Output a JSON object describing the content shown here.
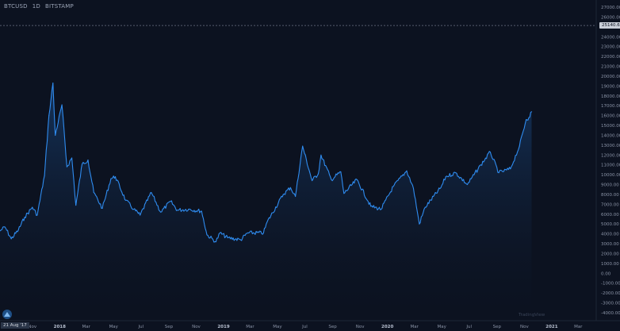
{
  "header": {
    "symbol": "BTCUSD",
    "interval": "1D",
    "exchange": "BITSTAMP"
  },
  "crosshair": {
    "price_label": "25140.67",
    "date_label": "21 Aug '17"
  },
  "watermark": "TradingView",
  "colors": {
    "background": "#0c1220",
    "line": "#2f8cf0",
    "price_tag": "#c9ced8"
  },
  "icons": {
    "logo": "tradingview-logo-icon"
  },
  "chart_data": {
    "type": "area",
    "title": "BTCUSD · 1D · BITSTAMP",
    "ylim": [
      -4000,
      27000
    ],
    "yticks": [
      27000,
      26000,
      25000,
      24000,
      23000,
      22000,
      21000,
      20000,
      19000,
      18000,
      17000,
      16000,
      15000,
      14000,
      13000,
      12000,
      11000,
      10000,
      9000,
      8000,
      7000,
      6000,
      5000,
      4000,
      3000,
      2000,
      1000,
      0,
      -1000,
      -2000,
      -3000,
      -4000
    ],
    "ytick_labels": [
      "27000.00",
      "26000.00",
      "25000.00",
      "24000.00",
      "23000.00",
      "22000.00",
      "21000.00",
      "20000.00",
      "19000.00",
      "18000.00",
      "17000.00",
      "16000.00",
      "15000.00",
      "14000.00",
      "13000.00",
      "12000.00",
      "11000.00",
      "10000.00",
      "9000.00",
      "8000.00",
      "7000.00",
      "6000.00",
      "5000.00",
      "4000.00",
      "3000.00",
      "2000.00",
      "1000.00",
      "0.00",
      "-1000.00",
      "-2000.00",
      "-3000.00",
      "-4000.00"
    ],
    "xticks": [
      {
        "label": "Nov",
        "date": "2017-11-01",
        "bold": false
      },
      {
        "label": "2018",
        "date": "2018-01-01",
        "bold": true
      },
      {
        "label": "Mar",
        "date": "2018-03-01",
        "bold": false
      },
      {
        "label": "May",
        "date": "2018-05-01",
        "bold": false
      },
      {
        "label": "Jul",
        "date": "2018-07-01",
        "bold": false
      },
      {
        "label": "Sep",
        "date": "2018-09-01",
        "bold": false
      },
      {
        "label": "Nov",
        "date": "2018-11-01",
        "bold": false
      },
      {
        "label": "2019",
        "date": "2019-01-01",
        "bold": true
      },
      {
        "label": "Mar",
        "date": "2019-03-01",
        "bold": false
      },
      {
        "label": "May",
        "date": "2019-05-01",
        "bold": false
      },
      {
        "label": "Jul",
        "date": "2019-07-01",
        "bold": false
      },
      {
        "label": "Sep",
        "date": "2019-09-01",
        "bold": false
      },
      {
        "label": "Nov",
        "date": "2019-11-01",
        "bold": false
      },
      {
        "label": "2020",
        "date": "2020-01-01",
        "bold": true
      },
      {
        "label": "Mar",
        "date": "2020-03-01",
        "bold": false
      },
      {
        "label": "May",
        "date": "2020-05-01",
        "bold": false
      },
      {
        "label": "Jul",
        "date": "2020-07-01",
        "bold": false
      },
      {
        "label": "Sep",
        "date": "2020-09-01",
        "bold": false
      },
      {
        "label": "Nov",
        "date": "2020-11-01",
        "bold": false
      },
      {
        "label": "2021",
        "date": "2021-01-01",
        "bold": true
      },
      {
        "label": "Mar",
        "date": "2021-03-01",
        "bold": false
      }
    ],
    "xrange": [
      "2017-08-21",
      "2021-04-10"
    ],
    "series": [
      {
        "points": [
          [
            "2017-08-21",
            4300
          ],
          [
            "2017-09-01",
            4700
          ],
          [
            "2017-09-15",
            3500
          ],
          [
            "2017-10-01",
            4400
          ],
          [
            "2017-10-15",
            5700
          ],
          [
            "2017-11-01",
            6700
          ],
          [
            "2017-11-12",
            5900
          ],
          [
            "2017-11-28",
            9900
          ],
          [
            "2017-12-08",
            16000
          ],
          [
            "2017-12-17",
            19300
          ],
          [
            "2017-12-22",
            14000
          ],
          [
            "2018-01-06",
            17100
          ],
          [
            "2018-01-17",
            10800
          ],
          [
            "2018-01-28",
            11700
          ],
          [
            "2018-02-06",
            6900
          ],
          [
            "2018-02-20",
            11100
          ],
          [
            "2018-03-05",
            11500
          ],
          [
            "2018-03-18",
            8200
          ],
          [
            "2018-04-06",
            6600
          ],
          [
            "2018-04-25",
            9600
          ],
          [
            "2018-05-05",
            9800
          ],
          [
            "2018-05-28",
            7400
          ],
          [
            "2018-06-15",
            6500
          ],
          [
            "2018-06-29",
            5900
          ],
          [
            "2018-07-24",
            8200
          ],
          [
            "2018-08-14",
            6200
          ],
          [
            "2018-09-05",
            7300
          ],
          [
            "2018-09-20",
            6400
          ],
          [
            "2018-10-15",
            6500
          ],
          [
            "2018-11-13",
            6300
          ],
          [
            "2018-11-25",
            3900
          ],
          [
            "2018-12-15",
            3200
          ],
          [
            "2018-12-24",
            4100
          ],
          [
            "2019-01-10",
            3600
          ],
          [
            "2019-02-08",
            3400
          ],
          [
            "2019-02-24",
            4100
          ],
          [
            "2019-03-31",
            4100
          ],
          [
            "2019-04-08",
            5200
          ],
          [
            "2019-05-14",
            8000
          ],
          [
            "2019-05-30",
            8700
          ],
          [
            "2019-06-10",
            7800
          ],
          [
            "2019-06-26",
            12900
          ],
          [
            "2019-07-17",
            9400
          ],
          [
            "2019-07-31",
            10100
          ],
          [
            "2019-08-06",
            12000
          ],
          [
            "2019-08-29",
            9500
          ],
          [
            "2019-09-19",
            10300
          ],
          [
            "2019-09-26",
            8100
          ],
          [
            "2019-10-25",
            9500
          ],
          [
            "2019-11-25",
            6800
          ],
          [
            "2019-12-18",
            6500
          ],
          [
            "2020-01-14",
            8800
          ],
          [
            "2020-02-13",
            10400
          ],
          [
            "2020-02-28",
            8600
          ],
          [
            "2020-03-12",
            5000
          ],
          [
            "2020-03-25",
            6700
          ],
          [
            "2020-04-29",
            8700
          ],
          [
            "2020-05-10",
            9800
          ],
          [
            "2020-06-01",
            10200
          ],
          [
            "2020-06-27",
            9000
          ],
          [
            "2020-07-27",
            11000
          ],
          [
            "2020-08-17",
            12300
          ],
          [
            "2020-09-05",
            10200
          ],
          [
            "2020-10-01",
            10600
          ],
          [
            "2020-10-21",
            12900
          ],
          [
            "2020-11-05",
            15600
          ],
          [
            "2020-11-11",
            15800
          ],
          [
            "2020-11-17",
            16400
          ]
        ]
      }
    ],
    "last_price": 25140.67
  }
}
